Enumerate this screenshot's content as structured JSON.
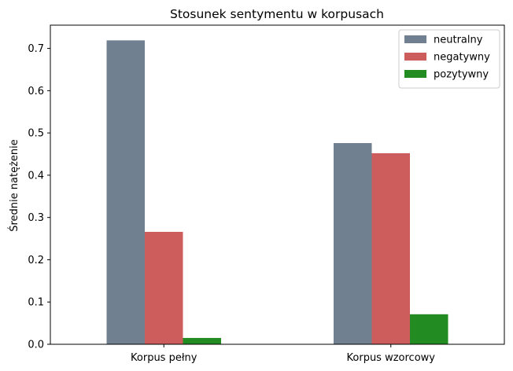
{
  "chart_data": {
    "type": "bar",
    "title": "Stosunek sentymentu w korpusach",
    "xlabel": "",
    "ylabel": "Średnie natężenie",
    "categories": [
      "Korpus pełny",
      "Korpus wzorcowy"
    ],
    "series": [
      {
        "name": "neutralny",
        "color": "#708090",
        "values": [
          0.719,
          0.476
        ]
      },
      {
        "name": "negatywny",
        "color": "#cd5c5c",
        "values": [
          0.266,
          0.452
        ]
      },
      {
        "name": "pozytywny",
        "color": "#228b22",
        "values": [
          0.015,
          0.071
        ]
      }
    ],
    "ylim": [
      0,
      0.755
    ],
    "yticks": [
      "0.0",
      "0.1",
      "0.2",
      "0.3",
      "0.4",
      "0.5",
      "0.6",
      "0.7"
    ],
    "grid": false,
    "legend": "top-right"
  }
}
